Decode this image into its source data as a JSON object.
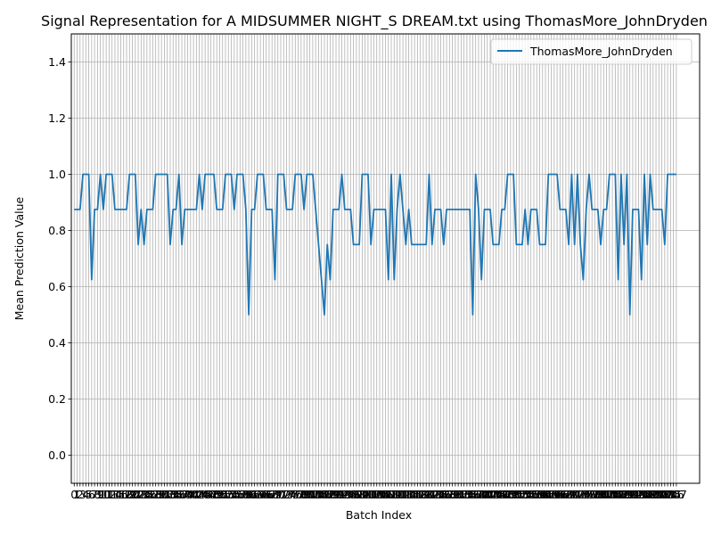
{
  "chart_data": {
    "type": "line",
    "title": "Signal Representation for A MIDSUMMER NIGHT_S DREAM.txt using ThomasMore_JohnDryden",
    "xlabel": "Batch Index",
    "ylabel": "Mean Prediction Value",
    "xlim": [
      -1,
      215
    ],
    "ylim": [
      -0.1,
      1.5
    ],
    "yticks": [
      0.0,
      0.2,
      0.4,
      0.6,
      0.8,
      1.0,
      1.2,
      1.4
    ],
    "ytick_labels": [
      "0.0",
      "0.2",
      "0.4",
      "0.6",
      "0.8",
      "1.0",
      "1.2",
      "1.4"
    ],
    "grid": true,
    "legend": "top-right",
    "series": [
      {
        "name": "ThomasMore_JohnDryden",
        "color": "#1f77b4",
        "values": [
          0.875,
          0.875,
          0.875,
          1.0,
          1.0,
          1.0,
          0.625,
          0.875,
          0.875,
          1.0,
          0.875,
          1.0,
          1.0,
          1.0,
          0.875,
          0.875,
          0.875,
          0.875,
          0.875,
          1.0,
          1.0,
          1.0,
          0.75,
          0.875,
          0.75,
          0.875,
          0.875,
          0.875,
          1.0,
          1.0,
          1.0,
          1.0,
          1.0,
          0.75,
          0.875,
          0.875,
          1.0,
          0.75,
          0.875,
          0.875,
          0.875,
          0.875,
          0.875,
          1.0,
          0.875,
          1.0,
          1.0,
          1.0,
          1.0,
          0.875,
          0.875,
          0.875,
          1.0,
          1.0,
          1.0,
          0.875,
          1.0,
          1.0,
          1.0,
          0.875,
          0.5,
          0.875,
          0.875,
          1.0,
          1.0,
          1.0,
          0.875,
          0.875,
          0.875,
          0.625,
          1.0,
          1.0,
          1.0,
          0.875,
          0.875,
          0.875,
          1.0,
          1.0,
          1.0,
          0.875,
          1.0,
          1.0,
          1.0,
          0.875,
          0.75,
          0.625,
          0.5,
          0.75,
          0.625,
          0.875,
          0.875,
          0.875,
          1.0,
          0.875,
          0.875,
          0.875,
          0.75,
          0.75,
          0.75,
          1.0,
          1.0,
          1.0,
          0.75,
          0.875,
          0.875,
          0.875,
          0.875,
          0.875,
          0.625,
          1.0,
          0.625,
          0.875,
          1.0,
          0.875,
          0.75,
          0.875,
          0.75,
          0.75,
          0.75,
          0.75,
          0.75,
          0.75,
          1.0,
          0.75,
          0.875,
          0.875,
          0.875,
          0.75,
          0.875,
          0.875,
          0.875,
          0.875,
          0.875,
          0.875,
          0.875,
          0.875,
          0.875,
          0.5,
          1.0,
          0.875,
          0.625,
          0.875,
          0.875,
          0.875,
          0.75,
          0.75,
          0.75,
          0.875,
          0.875,
          1.0,
          1.0,
          1.0,
          0.75,
          0.75,
          0.75,
          0.875,
          0.75,
          0.875,
          0.875,
          0.875,
          0.75,
          0.75,
          0.75,
          1.0,
          1.0,
          1.0,
          1.0,
          0.875,
          0.875,
          0.875,
          0.75,
          1.0,
          0.75,
          1.0,
          0.75,
          0.625,
          0.875,
          1.0,
          0.875,
          0.875,
          0.875,
          0.75,
          0.875,
          0.875,
          1.0,
          1.0,
          1.0,
          0.625,
          1.0,
          0.75,
          1.0,
          0.5,
          0.875,
          0.875,
          0.875,
          0.625,
          1.0,
          0.75,
          1.0,
          0.875,
          0.875,
          0.875,
          0.875,
          0.75,
          1.0,
          1.0,
          1.0,
          1.0
        ]
      }
    ]
  }
}
